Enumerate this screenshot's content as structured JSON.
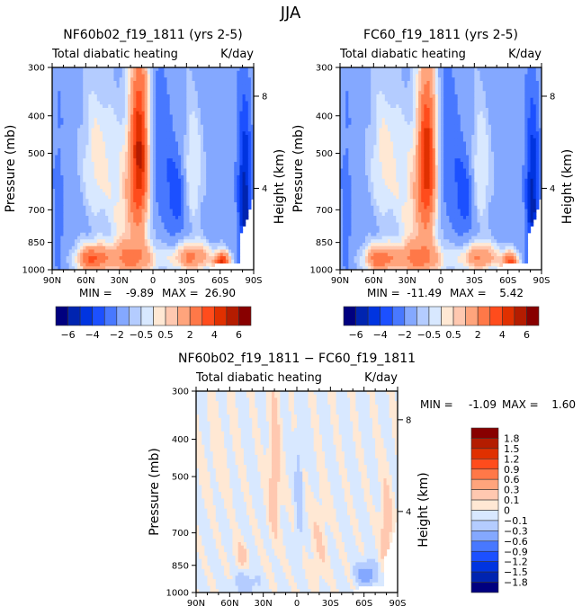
{
  "figure_title": "JJA",
  "palette": [
    "#00007f",
    "#0024b0",
    "#0034e0",
    "#1c50ff",
    "#4878ff",
    "#84a8ff",
    "#b4ccff",
    "#d8e8ff",
    "#ffe8d4",
    "#ffc8b0",
    "#ffa47c",
    "#ff7848",
    "#ff4c1c",
    "#e03000",
    "#b41c00",
    "#880000"
  ],
  "chart_data": [
    {
      "id": "panel-nf60",
      "type": "heatmap",
      "title": "NF60b02_f19_1811 (yrs 2-5)",
      "subtitle_left": "Total diabatic heating",
      "subtitle_right": "K/day",
      "xlabel": "",
      "ylabel": "Pressure (mb)",
      "y2label": "Height (km)",
      "x_ticks": [
        "90N",
        "60N",
        "30N",
        "0",
        "30S",
        "60S",
        "90S"
      ],
      "x_range": [
        90,
        -90
      ],
      "y_ticks": [
        300,
        400,
        500,
        700,
        850,
        1000
      ],
      "y_range": [
        300,
        1000
      ],
      "y2_ticks": [
        {
          "label": "8",
          "p": 356
        },
        {
          "label": "4",
          "p": 616
        }
      ],
      "min_label": "MIN =",
      "min_value": "-9.89",
      "max_label": "MAX =",
      "max_value": "26.90",
      "levels": [
        -6,
        -5,
        -4,
        -3,
        -2,
        -1,
        -0.5,
        0,
        0.5,
        1,
        2,
        3,
        4,
        5,
        6
      ],
      "colorbar_labels": [
        "-6",
        "-4",
        "-2",
        "-0.5",
        "0.5",
        "2",
        "4",
        "6"
      ],
      "colorbar_orientation": "horizontal",
      "field": {
        "base": -1.4,
        "features": [
          {
            "lat": 50,
            "p": 520,
            "dlat": 14,
            "dp": 220,
            "amp": 1.6
          },
          {
            "lat": 12,
            "p": 480,
            "dlat": 8,
            "dp": 260,
            "amp": 5.5
          },
          {
            "lat": 20,
            "p": 700,
            "dlat": 18,
            "dp": 320,
            "amp": 2.0
          },
          {
            "lat": -8,
            "p": 520,
            "dlat": 10,
            "dp": 240,
            "amp": -1.6
          },
          {
            "lat": -35,
            "p": 560,
            "dlat": 10,
            "dp": 200,
            "amp": 1.6
          },
          {
            "lat": -22,
            "p": 650,
            "dlat": 8,
            "dp": 160,
            "amp": -2.4
          },
          {
            "lat": 55,
            "p": 940,
            "dlat": 14,
            "dp": 80,
            "amp": 4.2
          },
          {
            "lat": 20,
            "p": 940,
            "dlat": 25,
            "dp": 90,
            "amp": 2.8
          },
          {
            "lat": -35,
            "p": 930,
            "dlat": 18,
            "dp": 80,
            "amp": 3.6
          },
          {
            "lat": -62,
            "p": 960,
            "dlat": 7,
            "dp": 60,
            "amp": 5.5
          },
          {
            "lat": -82,
            "p": 650,
            "dlat": 6,
            "dp": 300,
            "amp": -4.2
          },
          {
            "lat": 84,
            "p": 700,
            "dlat": 6,
            "dp": 400,
            "amp": -1.0
          }
        ]
      }
    },
    {
      "id": "panel-fc60",
      "type": "heatmap",
      "title": "FC60_f19_1811 (yrs 2-5)",
      "subtitle_left": "Total diabatic heating",
      "subtitle_right": "K/day",
      "xlabel": "",
      "ylabel": "Pressure (mb)",
      "y2label": "Height (km)",
      "x_ticks": [
        "90N",
        "60N",
        "30N",
        "0",
        "30S",
        "60S",
        "90S"
      ],
      "x_range": [
        90,
        -90
      ],
      "y_ticks": [
        300,
        400,
        500,
        700,
        850,
        1000
      ],
      "y_range": [
        300,
        1000
      ],
      "y2_ticks": [
        {
          "label": "8",
          "p": 356
        },
        {
          "label": "4",
          "p": 616
        }
      ],
      "min_label": "MIN =",
      "min_value": "-11.49",
      "max_label": "MAX =",
      "max_value": "5.42",
      "levels": [
        -6,
        -5,
        -4,
        -3,
        -2,
        -1,
        -0.5,
        0,
        0.5,
        1,
        2,
        3,
        4,
        5,
        6
      ],
      "colorbar_labels": [
        "-6",
        "-4",
        "-2",
        "-0.5",
        "0.5",
        "2",
        "4",
        "6"
      ],
      "colorbar_orientation": "horizontal",
      "field": {
        "base": -1.4,
        "features": [
          {
            "lat": 50,
            "p": 520,
            "dlat": 14,
            "dp": 220,
            "amp": 1.6
          },
          {
            "lat": 12,
            "p": 500,
            "dlat": 8,
            "dp": 260,
            "amp": 5.0
          },
          {
            "lat": 20,
            "p": 700,
            "dlat": 18,
            "dp": 320,
            "amp": 2.0
          },
          {
            "lat": -8,
            "p": 520,
            "dlat": 10,
            "dp": 240,
            "amp": -1.6
          },
          {
            "lat": -35,
            "p": 560,
            "dlat": 10,
            "dp": 200,
            "amp": 1.6
          },
          {
            "lat": -22,
            "p": 650,
            "dlat": 8,
            "dp": 160,
            "amp": -2.4
          },
          {
            "lat": 55,
            "p": 940,
            "dlat": 14,
            "dp": 80,
            "amp": 3.8
          },
          {
            "lat": 20,
            "p": 940,
            "dlat": 25,
            "dp": 90,
            "amp": 2.8
          },
          {
            "lat": -35,
            "p": 930,
            "dlat": 18,
            "dp": 80,
            "amp": 3.4
          },
          {
            "lat": -62,
            "p": 960,
            "dlat": 7,
            "dp": 60,
            "amp": 5.0
          },
          {
            "lat": -82,
            "p": 650,
            "dlat": 6,
            "dp": 300,
            "amp": -4.0
          },
          {
            "lat": 84,
            "p": 700,
            "dlat": 6,
            "dp": 400,
            "amp": -1.0
          }
        ]
      }
    },
    {
      "id": "panel-diff",
      "type": "heatmap",
      "title": "NF60b02_f19_1811 − FC60_f19_1811",
      "subtitle_left": "Total diabatic heating",
      "subtitle_right": "K/day",
      "xlabel": "",
      "ylabel": "Pressure (mb)",
      "y2label": "Height (km)",
      "x_ticks": [
        "90N",
        "60N",
        "30N",
        "0",
        "30S",
        "60S",
        "90S"
      ],
      "x_range": [
        90,
        -90
      ],
      "y_ticks": [
        300,
        400,
        500,
        700,
        850,
        1000
      ],
      "y_range": [
        300,
        1000
      ],
      "y2_ticks": [
        {
          "label": "8",
          "p": 356
        },
        {
          "label": "4",
          "p": 616
        }
      ],
      "min_label": "MIN =",
      "min_value": "-1.09",
      "max_label": "MAX =",
      "max_value": "1.60",
      "levels": [
        -1.8,
        -1.5,
        -1.2,
        -0.9,
        -0.6,
        -0.3,
        -0.1,
        0,
        0.1,
        0.3,
        0.6,
        0.9,
        1.2,
        1.5,
        1.8
      ],
      "colorbar_labels": [
        "1.8",
        "1.5",
        "1.2",
        "0.9",
        "0.6",
        "0.3",
        "0.1",
        "0",
        "-0.1",
        "-0.3",
        "-0.6",
        "-0.9",
        "-1.2",
        "-1.5",
        "-1.8"
      ],
      "colorbar_orientation": "vertical",
      "field": {
        "base": -0.02,
        "features": [
          {
            "lat": 20,
            "p": 500,
            "dlat": 6,
            "dp": 250,
            "amp": 0.2
          },
          {
            "lat": -2,
            "p": 550,
            "dlat": 3,
            "dp": 200,
            "amp": -0.18
          },
          {
            "lat": 50,
            "p": 800,
            "dlat": 6,
            "dp": 60,
            "amp": 0.18
          },
          {
            "lat": -20,
            "p": 750,
            "dlat": 8,
            "dp": 200,
            "amp": 0.12
          },
          {
            "lat": -62,
            "p": 900,
            "dlat": 8,
            "dp": 60,
            "amp": -0.5
          },
          {
            "lat": -80,
            "p": 700,
            "dlat": 6,
            "dp": 200,
            "amp": 0.2
          },
          {
            "lat": 70,
            "p": 450,
            "dlat": 14,
            "dp": 140,
            "amp": 0.06
          },
          {
            "lat": 45,
            "p": 950,
            "dlat": 10,
            "dp": 60,
            "amp": -0.2
          }
        ]
      }
    }
  ]
}
